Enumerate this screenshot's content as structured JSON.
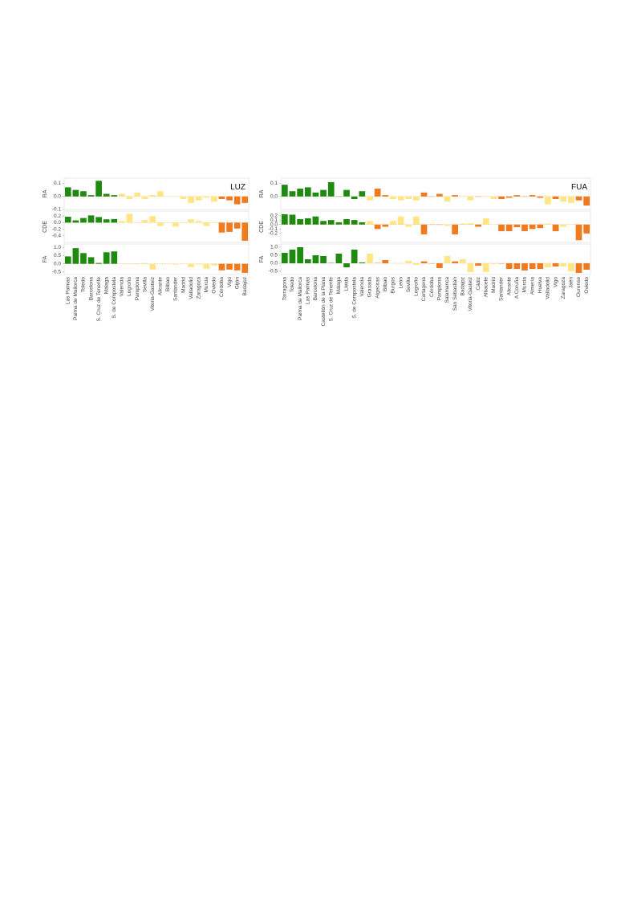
{
  "chart_data": [
    {
      "type": "bar",
      "title": "LUZ",
      "categories": [
        "Las Palmas",
        "Palma de Mallorca",
        "Toledo",
        "Barcelona",
        "S. Cruz de Tenerife",
        "Málaga",
        "S. de Compostela",
        "Valencia",
        "Logroño",
        "Pamplona",
        "Sevilla",
        "Vitoria-Gasteiz",
        "Alicante",
        "Bilbao",
        "Santander",
        "Madrid",
        "Valladolid",
        "Zaragoza",
        "Murcia",
        "Oviedo",
        "Córdoba",
        "Vigo",
        "Gijón",
        "Badajoz"
      ],
      "colors": [
        "#1f8a10",
        "#1f8a10",
        "#1f8a10",
        "#1f8a10",
        "#1f8a10",
        "#1f8a10",
        "#1f8a10",
        "#ffe584",
        "#ffe584",
        "#ffe584",
        "#ffe584",
        "#ffe584",
        "#ffe584",
        "#ffe584",
        "#ffe584",
        "#ffe584",
        "#ffe584",
        "#ffe584",
        "#ffe584",
        "#ffe584",
        "#f07a1e",
        "#f07a1e",
        "#f07a1e",
        "#f07a1e"
      ],
      "panels": [
        {
          "ylabel": "RA",
          "ylim": [
            -0.1,
            0.14
          ],
          "yticks": [
            0.1,
            {
              "value": 0,
              "label": "0.0"
            },
            -0.1
          ],
          "values": [
            0.07,
            0.05,
            0.04,
            0.01,
            0.12,
            0.02,
            0.01,
            0.02,
            -0.02,
            0.03,
            -0.02,
            0.01,
            0.04,
            0.0,
            0.0,
            -0.02,
            -0.05,
            -0.03,
            -0.01,
            -0.04,
            -0.02,
            -0.03,
            -0.06,
            -0.05
          ]
        },
        {
          "ylabel": "CDE",
          "ylim": [
            -0.6,
            0.35
          ],
          "yticks": [
            0.2,
            {
              "value": 0,
              "label": "0.0"
            },
            -0.2,
            -0.4
          ],
          "values": [
            0.18,
            0.07,
            0.14,
            0.22,
            0.17,
            0.1,
            0.11,
            0.05,
            0.27,
            0.0,
            0.08,
            0.2,
            -0.1,
            0.0,
            -0.12,
            0.0,
            0.1,
            0.05,
            -0.1,
            0.0,
            -0.3,
            -0.28,
            -0.18,
            -0.55
          ]
        },
        {
          "ylabel": "FA",
          "ylim": [
            -0.65,
            1.2
          ],
          "yticks": [
            {
              "value": 1,
              "label": "1.0"
            },
            0.5,
            {
              "value": 0,
              "label": "0.0"
            },
            -0.5
          ],
          "values": [
            0.45,
            0.95,
            0.65,
            0.4,
            0.05,
            0.7,
            0.75,
            0.02,
            0.02,
            0.03,
            0.05,
            -0.35,
            0.02,
            -0.03,
            -0.05,
            -0.03,
            -0.2,
            -0.05,
            -0.3,
            -0.1,
            -0.4,
            -0.35,
            -0.4,
            -0.55
          ]
        }
      ]
    },
    {
      "type": "bar",
      "title": "FUA",
      "categories": [
        "Tarragona",
        "Toledo",
        "Palma de Mallorca",
        "Las Palmas",
        "Barcelona",
        "Castellón de la Plana",
        "S. Cruz de Tenerife",
        "Málaga",
        "Lleida",
        "S. de Compostela",
        "Valencia",
        "Granada",
        "Algeciras",
        "Bilbao",
        "Burgos",
        "León",
        "Sevilla",
        "Logroño",
        "Cartagena",
        "Córdoba",
        "Pamplona",
        "Salamanca",
        "San Sebastián",
        "Badajoz",
        "Vitoria-Gasteiz",
        "Cádiz",
        "Albacete",
        "Madrid",
        "Santander",
        "Alicante",
        "A Coruña",
        "Murcia",
        "Almería",
        "Huelva",
        "Valladolid",
        "Vigo",
        "Zaragoza",
        "Jaén",
        "Ourense",
        "Oviedo"
      ],
      "colors": [
        "#1f8a10",
        "#1f8a10",
        "#1f8a10",
        "#1f8a10",
        "#1f8a10",
        "#1f8a10",
        "#1f8a10",
        "#1f8a10",
        "#1f8a10",
        "#1f8a10",
        "#1f8a10",
        "#ffe584",
        "#f07a1e",
        "#f07a1e",
        "#ffe584",
        "#ffe584",
        "#ffe584",
        "#ffe584",
        "#f07a1e",
        "#f07a1e",
        "#f07a1e",
        "#ffe584",
        "#f07a1e",
        "#ffe584",
        "#ffe584",
        "#f07a1e",
        "#ffe584",
        "#ffe584",
        "#f07a1e",
        "#f07a1e",
        "#f07a1e",
        "#f07a1e",
        "#f07a1e",
        "#f07a1e",
        "#ffe584",
        "#f07a1e",
        "#ffe584",
        "#ffe584",
        "#f07a1e",
        "#f07a1e"
      ],
      "panels": [
        {
          "ylabel": "RA",
          "ylim": [
            -0.1,
            0.14
          ],
          "yticks": [
            0.1,
            {
              "value": 0,
              "label": "0.0"
            }
          ],
          "values": [
            0.09,
            0.04,
            0.06,
            0.07,
            0.03,
            0.05,
            0.11,
            0.0,
            0.05,
            -0.02,
            0.04,
            -0.03,
            0.06,
            0.01,
            -0.02,
            -0.03,
            -0.02,
            -0.03,
            0.03,
            0.0,
            0.02,
            -0.04,
            0.01,
            0.0,
            -0.03,
            0.0,
            0.0,
            -0.02,
            -0.02,
            -0.01,
            0.01,
            0.0,
            0.01,
            -0.01,
            -0.06,
            -0.02,
            -0.04,
            -0.05,
            -0.03,
            -0.07
          ]
        },
        {
          "ylabel": "CDE",
          "ylim": [
            -0.4,
            0.3
          ],
          "yticks": [
            0.2,
            0.1,
            {
              "value": 0,
              "label": "0.0"
            },
            -0.1,
            -0.2
          ],
          "values": [
            0.23,
            0.22,
            0.12,
            0.14,
            0.18,
            0.08,
            0.1,
            0.05,
            0.12,
            0.1,
            0.05,
            0.08,
            -0.1,
            -0.05,
            0.08,
            0.18,
            -0.05,
            0.18,
            -0.22,
            0.0,
            0.0,
            -0.03,
            -0.22,
            0.02,
            0.03,
            -0.05,
            0.14,
            0.0,
            -0.15,
            -0.15,
            -0.06,
            -0.15,
            -0.1,
            -0.08,
            0.02,
            -0.15,
            -0.05,
            0.0,
            -0.35,
            -0.2
          ]
        },
        {
          "ylabel": "FA",
          "ylim": [
            -0.7,
            1.2
          ],
          "yticks": [
            {
              "value": 1,
              "label": "1.0"
            },
            0.5,
            {
              "value": 0,
              "label": "0.0"
            },
            -0.5
          ],
          "values": [
            0.65,
            0.85,
            1.0,
            0.25,
            0.5,
            0.45,
            0.02,
            0.6,
            -0.25,
            0.85,
            0.05,
            0.6,
            0.02,
            0.2,
            0.0,
            0.0,
            0.15,
            -0.1,
            0.12,
            0.0,
            -0.3,
            0.45,
            0.12,
            0.25,
            -0.55,
            -0.15,
            -0.55,
            -0.05,
            0.0,
            -0.35,
            -0.35,
            -0.45,
            -0.35,
            -0.35,
            -0.25,
            -0.2,
            -0.2,
            -0.5,
            -0.6,
            -0.4
          ]
        }
      ]
    }
  ]
}
